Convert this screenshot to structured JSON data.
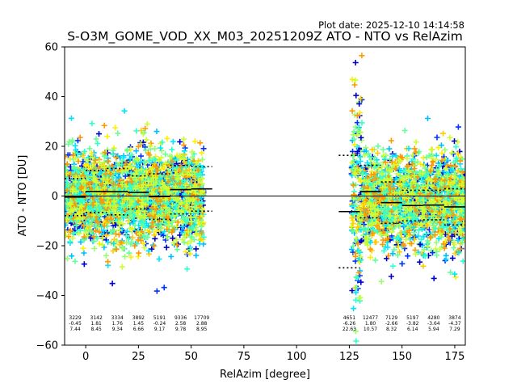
{
  "chart_data": {
    "type": "scatter",
    "plot_date": "Plot date: 2025-12-10 14:14:58",
    "title": "S-O3M_GOME_VOD_XX_M03_20251209Z ATO - NTO vs RelAzim",
    "xlabel": "RelAzim [degree]",
    "ylabel": "ATO - NTO [DU]",
    "xlim": [
      -10,
      180
    ],
    "ylim": [
      -60,
      60
    ],
    "x_ticks": [
      0,
      25,
      50,
      75,
      100,
      125,
      150,
      175
    ],
    "y_ticks": [
      -60,
      -40,
      -20,
      0,
      20,
      40,
      60
    ],
    "x_tick_labels": [
      "0",
      "25",
      "50",
      "75",
      "100",
      "125",
      "150",
      "175"
    ],
    "y_tick_labels": [
      "−60",
      "−40",
      "−20",
      "0",
      "20",
      "40",
      "60"
    ],
    "marker": "plus",
    "zero_line": 0,
    "scatter_clusters": [
      {
        "x_start": -10,
        "x_end": 56,
        "y_low": -24,
        "y_high": 24
      },
      {
        "x_start": 126,
        "x_end": 131,
        "y_low": -58,
        "y_high": 58
      },
      {
        "x_start": 131,
        "x_end": 180,
        "y_low": -27,
        "y_high": 22
      }
    ],
    "bins": [
      {
        "x_start": -10,
        "x_end": 0,
        "mean": -0.45,
        "std": 7.44,
        "count": "3229",
        "mean_label": "-0.45",
        "std_label": "7.44"
      },
      {
        "x_start": 0,
        "x_end": 10,
        "mean": 1.81,
        "std": 8.45,
        "count": "3142",
        "mean_label": "1.81",
        "std_label": "8.45"
      },
      {
        "x_start": 10,
        "x_end": 20,
        "mean": 1.76,
        "std": 9.34,
        "count": "3334",
        "mean_label": "1.76",
        "std_label": "9.34"
      },
      {
        "x_start": 20,
        "x_end": 30,
        "mean": 1.45,
        "std": 6.66,
        "count": "3892",
        "mean_label": "1.45",
        "std_label": "6.66"
      },
      {
        "x_start": 30,
        "x_end": 40,
        "mean": -0.24,
        "std": 9.17,
        "count": "5191",
        "mean_label": "-0.24",
        "std_label": "9.17"
      },
      {
        "x_start": 40,
        "x_end": 50,
        "mean": 2.58,
        "std": 9.78,
        "count": "9336",
        "mean_label": "2.58",
        "std_label": "9.78"
      },
      {
        "x_start": 50,
        "x_end": 60,
        "mean": 2.88,
        "std": 8.95,
        "count": "17709",
        "mean_label": "2.88",
        "std_label": "8.95"
      },
      {
        "x_start": 120,
        "x_end": 130,
        "mean": -6.26,
        "std": 22.63,
        "count": "4651",
        "mean_label": "-6.26",
        "std_label": "22.63"
      },
      {
        "x_start": 130,
        "x_end": 140,
        "mean": 1.8,
        "std": 10.57,
        "count": "12477",
        "mean_label": "1.80",
        "std_label": "10.57"
      },
      {
        "x_start": 140,
        "x_end": 150,
        "mean": -2.66,
        "std": 8.32,
        "count": "7129",
        "mean_label": "-2.66",
        "std_label": "8.32"
      },
      {
        "x_start": 150,
        "x_end": 160,
        "mean": -3.82,
        "std": 6.14,
        "count": "5197",
        "mean_label": "-3.82",
        "std_label": "6.14"
      },
      {
        "x_start": 160,
        "x_end": 170,
        "mean": -3.64,
        "std": 5.94,
        "count": "4280",
        "mean_label": "-3.64",
        "std_label": "5.94"
      },
      {
        "x_start": 170,
        "x_end": 180,
        "mean": -4.37,
        "std": 7.29,
        "count": "3874",
        "mean_label": "-4.37",
        "std_label": "7.29"
      }
    ],
    "grid": false,
    "colors": {
      "scatter_palette": [
        "#66ff99",
        "#33ffcc",
        "#00e5ff",
        "#00bfff",
        "#99ff66",
        "#ccff33",
        "#ffee00",
        "#ffcc00",
        "#ff9900",
        "#0033ff",
        "#0000cc"
      ],
      "mean_line": "#000000",
      "std_line": "#000000",
      "zero_line": "#000000"
    }
  }
}
